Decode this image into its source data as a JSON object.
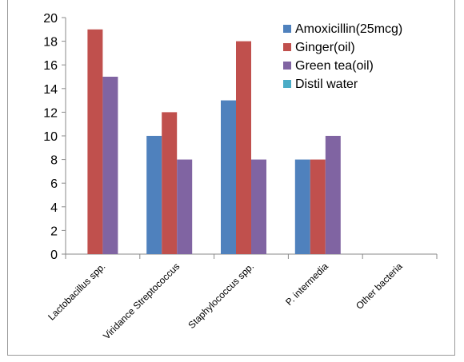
{
  "chart_data": {
    "type": "bar",
    "categories": [
      "Lactobacillus spp.",
      "Viridance Streptococcus",
      "Staphylococcus spp.",
      "P. intermedia",
      "Other bacteria"
    ],
    "series": [
      {
        "name": "Amoxicillin(25mcg)",
        "color": "#4f81bd",
        "values": [
          0,
          10,
          13,
          8,
          0
        ]
      },
      {
        "name": "Ginger(oil)",
        "color": "#c0504d",
        "values": [
          19,
          12,
          18,
          8,
          0
        ]
      },
      {
        "name": "Green tea(oil)",
        "color": "#8064a2",
        "values": [
          15,
          8,
          8,
          10,
          0
        ]
      },
      {
        "name": "Distil water",
        "color": "#4bacc6",
        "values": [
          0,
          0,
          0,
          0,
          0
        ]
      }
    ],
    "ylim": [
      0,
      20
    ],
    "yticks": [
      "0",
      "2",
      "4",
      "6",
      "8",
      "10",
      "12",
      "14",
      "16",
      "18",
      "20"
    ],
    "grid": false,
    "legend_position": "top-right"
  }
}
